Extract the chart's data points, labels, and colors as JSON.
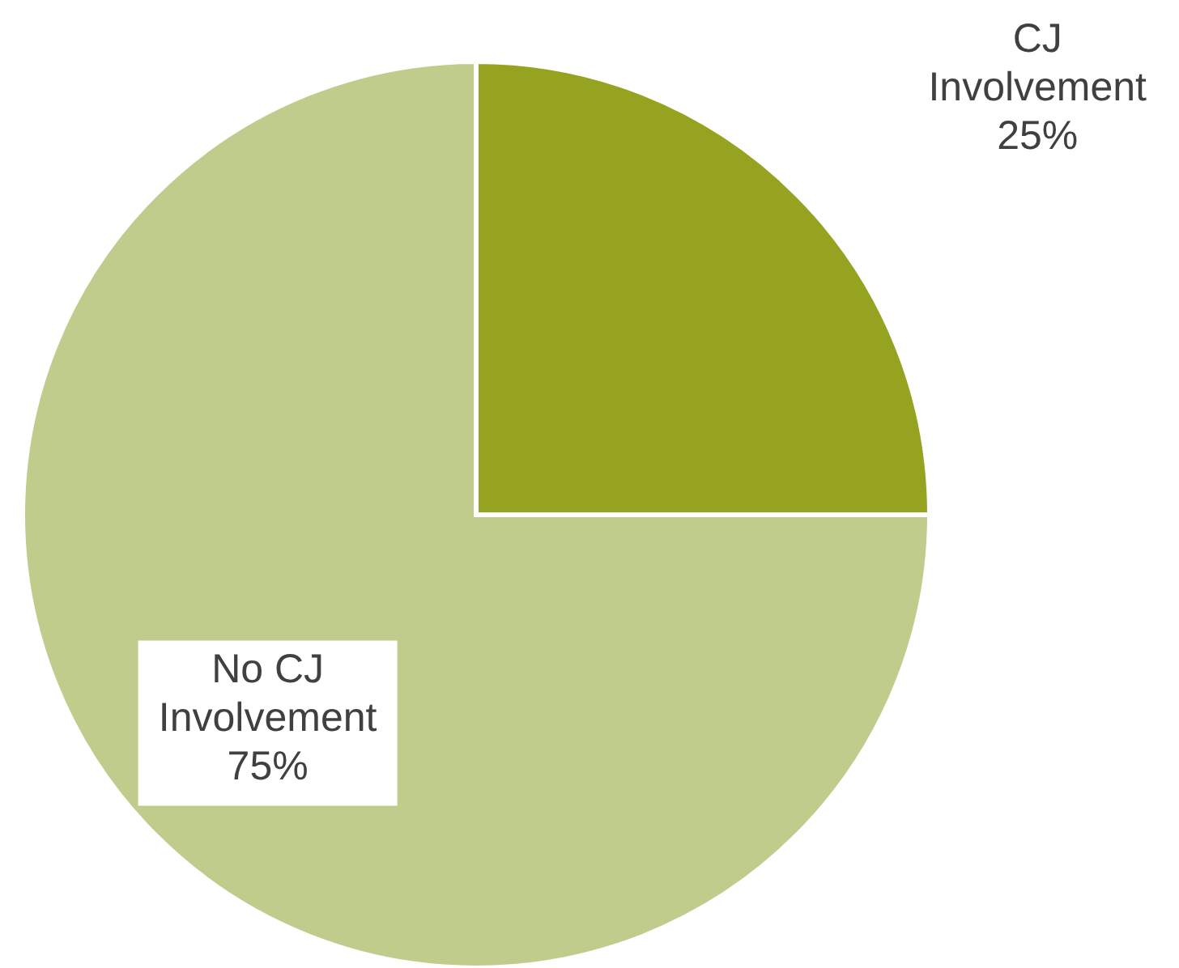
{
  "chart_data": {
    "type": "pie",
    "categories": [
      "CJ Involvement",
      "No CJ Involvement"
    ],
    "values": [
      25,
      75
    ],
    "colors": [
      "#95a320",
      "#c0cc8c"
    ],
    "value_labels": [
      "25%",
      "75%"
    ]
  }
}
